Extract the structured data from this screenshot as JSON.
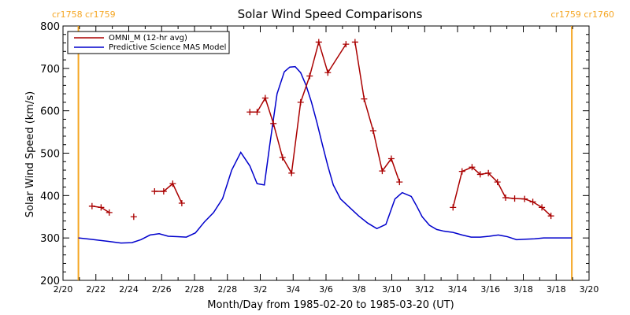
{
  "chart_data": {
    "type": "line",
    "title": "Solar Wind Speed Comparisons",
    "xlabel": "Month/Day from 1985-02-20 to 1985-03-20 (UT)",
    "ylabel": "Solar Wind Speed (km/s)",
    "xlim": [
      "1985-02-20",
      "1985-03-21"
    ],
    "ylim": [
      200,
      800
    ],
    "x_ticks": [
      "2/20",
      "2/22",
      "2/24",
      "2/26",
      "2/28",
      "2/28",
      "3/2",
      "3/4",
      "3/6",
      "3/8",
      "3/10",
      "3/12",
      "3/14",
      "3/16",
      "3/18",
      "3/18",
      "3/20"
    ],
    "y_ticks": [
      200,
      300,
      400,
      500,
      600,
      700,
      800
    ],
    "grid": false,
    "legend_position": "top-left",
    "colors": {
      "omni": "#aa0000",
      "model": "#0000cc",
      "carrington": "#f5a623",
      "axes": "#000000"
    },
    "carrington_markers": [
      {
        "day": 0.85,
        "labels": [
          "cr1758",
          "cr1759"
        ],
        "label_side": "left"
      },
      {
        "day": 28.05,
        "labels": [
          "cr1759",
          "cr1760"
        ],
        "label_side": "right"
      }
    ],
    "series": [
      {
        "name": "OMNI_M (12-hr avg)",
        "color": "#aa0000",
        "marker": "+",
        "x_days": [
          1.6,
          2.1,
          2.55,
          3.9,
          5.05,
          5.55,
          6.05,
          6.55,
          10.3,
          10.7,
          11.15,
          11.6,
          12.1,
          12.6,
          13.1,
          13.6,
          14.1,
          14.6,
          15.6,
          16.1,
          16.6,
          17.1,
          17.6,
          18.1,
          18.55,
          19.05,
          21.5,
          22.0,
          22.55,
          23.0,
          23.45,
          23.95,
          24.4,
          24.9,
          25.45,
          25.9,
          26.4,
          26.9,
          27.4,
          27.95
        ],
        "values": [
          375,
          372,
          360,
          350,
          410,
          410,
          428,
          382,
          597,
          597,
          630,
          570,
          490,
          453,
          620,
          682,
          762,
          690,
          757,
          762,
          628,
          553,
          458,
          487,
          432,
          null,
          372,
          457,
          467,
          450,
          453,
          432,
          395,
          393,
          392,
          385,
          372,
          352,
          null,
          null
        ],
        "gaps_after_index": [
          2,
          3,
          7,
          18,
          24
        ]
      },
      {
        "name": "Predictive Science MAS Model",
        "color": "#0000cc",
        "x_days": [
          0.85,
          1.5,
          2.5,
          3.2,
          3.8,
          4.3,
          4.8,
          5.3,
          5.8,
          6.3,
          6.8,
          7.3,
          7.8,
          8.3,
          8.8,
          9.3,
          9.8,
          10.3,
          10.7,
          11.1,
          11.4,
          11.8,
          12.2,
          12.5,
          12.8,
          13.1,
          13.4,
          13.7,
          14.0,
          14.3,
          14.6,
          14.9,
          15.3,
          15.8,
          16.3,
          16.8,
          17.3,
          17.8,
          18.3,
          18.7,
          19.2,
          19.5,
          19.8,
          20.2,
          20.6,
          21.0,
          21.5,
          22.0,
          22.5,
          23.0,
          23.5,
          24.0,
          24.5,
          25.0,
          25.5,
          26.0,
          26.5,
          27.0,
          27.5,
          28.05
        ],
        "values": [
          300,
          297,
          292,
          288,
          289,
          296,
          307,
          310,
          304,
          303,
          302,
          312,
          338,
          360,
          393,
          460,
          502,
          470,
          428,
          425,
          520,
          640,
          692,
          703,
          704,
          690,
          660,
          620,
          572,
          520,
          470,
          425,
          392,
          372,
          352,
          335,
          322,
          332,
          392,
          407,
          398,
          375,
          350,
          330,
          320,
          316,
          313,
          307,
          302,
          302,
          304,
          307,
          303,
          296,
          297,
          298,
          300,
          300,
          300,
          300
        ]
      }
    ]
  }
}
